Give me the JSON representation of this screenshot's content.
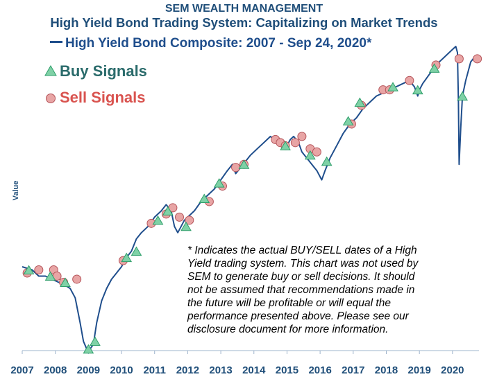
{
  "header": {
    "company": "SEM WEALTH MANAGEMENT",
    "title": "High Yield Bond Trading System: Capitalizing on Market Trends"
  },
  "legend": {
    "series_label": "High Yield Bond Composite: 2007 - Sep 24, 2020*",
    "buy_label": "Buy Signals",
    "sell_label": "Sell Signals"
  },
  "colors": {
    "line": "#1f4e8c",
    "buy": "#2e9e6a",
    "buy_fill": "#7fd1a6",
    "sell": "#b5545a",
    "sell_fill": "#e8a5a5",
    "header": "#1f4e79",
    "buy_text": "#2a6b6b",
    "sell_text": "#d9534f"
  },
  "disclaimer": "* Indicates the actual BUY/SELL dates of a High\nYield trading system.  This chart was not used by\nSEM to generate buy or sell decisions.  It should\nnot be assumed that recommendations made in\nthe future will be profitable or will equal the\nperformance presented above.  Please see our\ndisclosure document for more information.",
  "chart_data": {
    "type": "line",
    "title": "High Yield Bond Composite: 2007 - Sep 24, 2020*",
    "xlabel": "",
    "ylabel": "Value",
    "xlim": [
      2007.0,
      2020.8
    ],
    "ylim": [
      0,
      100
    ],
    "x_ticks": [
      2007,
      2008,
      2009,
      2010,
      2011,
      2012,
      2013,
      2014,
      2015,
      2016,
      2017,
      2018,
      2019,
      2020
    ],
    "y_tick_labels": "none",
    "series": [
      {
        "name": "High Yield Bond Composite",
        "x": [
          2007.0,
          2007.3,
          2007.5,
          2007.7,
          2007.9,
          2008.1,
          2008.3,
          2008.45,
          2008.6,
          2008.75,
          2008.85,
          2008.95,
          2009.05,
          2009.15,
          2009.25,
          2009.4,
          2009.55,
          2009.7,
          2009.85,
          2010.0,
          2010.15,
          2010.3,
          2010.45,
          2010.6,
          2010.8,
          2011.0,
          2011.2,
          2011.35,
          2011.5,
          2011.6,
          2011.7,
          2011.8,
          2011.9,
          2012.0,
          2012.2,
          2012.4,
          2012.6,
          2012.8,
          2013.0,
          2013.2,
          2013.35,
          2013.45,
          2013.6,
          2013.75,
          2013.9,
          2014.1,
          2014.3,
          2014.5,
          2014.6,
          2014.75,
          2014.9,
          2015.0,
          2015.1,
          2015.2,
          2015.35,
          2015.45,
          2015.6,
          2015.75,
          2015.9,
          2016.0,
          2016.05,
          2016.15,
          2016.3,
          2016.5,
          2016.7,
          2016.9,
          2017.1,
          2017.3,
          2017.5,
          2017.7,
          2017.9,
          2018.1,
          2018.3,
          2018.5,
          2018.7,
          2018.85,
          2018.95,
          2019.0,
          2019.1,
          2019.3,
          2019.5,
          2019.7,
          2019.9,
          2020.0,
          2020.1,
          2020.15,
          2020.18,
          2020.2,
          2020.25,
          2020.3,
          2020.4,
          2020.55,
          2020.7,
          2020.73
        ],
        "values": [
          27,
          26,
          24,
          24,
          23,
          22,
          21,
          20,
          17,
          9,
          3,
          0.5,
          0.5,
          2,
          9,
          16,
          20,
          23,
          25,
          27,
          30,
          32,
          36,
          38,
          40,
          43,
          45,
          47,
          45,
          40,
          38,
          40,
          42,
          43,
          45,
          48,
          50,
          52,
          55,
          58,
          60,
          57,
          59,
          61,
          63,
          65,
          67,
          69,
          68,
          67,
          65,
          66,
          68,
          69,
          67,
          64,
          62,
          60,
          58,
          56,
          55,
          58,
          62,
          66,
          70,
          73,
          75,
          78,
          80,
          82,
          83,
          84,
          85,
          86,
          87,
          85,
          82,
          84,
          86,
          89,
          92,
          94,
          96,
          97,
          98,
          96,
          80,
          60,
          72,
          82,
          87,
          93,
          95,
          94
        ]
      }
    ],
    "buy_signals": [
      {
        "x": 2007.2,
        "y": 26
      },
      {
        "x": 2007.85,
        "y": 24
      },
      {
        "x": 2008.3,
        "y": 22
      },
      {
        "x": 2009.0,
        "y": 0.5
      },
      {
        "x": 2009.2,
        "y": 3
      },
      {
        "x": 2010.15,
        "y": 30
      },
      {
        "x": 2010.45,
        "y": 32
      },
      {
        "x": 2011.1,
        "y": 42
      },
      {
        "x": 2011.4,
        "y": 45
      },
      {
        "x": 2011.95,
        "y": 40
      },
      {
        "x": 2012.5,
        "y": 49
      },
      {
        "x": 2012.95,
        "y": 54
      },
      {
        "x": 2013.7,
        "y": 60
      },
      {
        "x": 2014.95,
        "y": 66
      },
      {
        "x": 2015.7,
        "y": 63
      },
      {
        "x": 2016.2,
        "y": 61
      },
      {
        "x": 2016.85,
        "y": 74
      },
      {
        "x": 2017.2,
        "y": 80
      },
      {
        "x": 2018.2,
        "y": 85
      },
      {
        "x": 2018.95,
        "y": 84
      },
      {
        "x": 2019.45,
        "y": 91
      },
      {
        "x": 2020.3,
        "y": 82
      }
    ],
    "sell_signals": [
      {
        "x": 2007.15,
        "y": 25
      },
      {
        "x": 2007.5,
        "y": 26
      },
      {
        "x": 2007.95,
        "y": 26
      },
      {
        "x": 2008.05,
        "y": 24
      },
      {
        "x": 2008.25,
        "y": 22
      },
      {
        "x": 2008.65,
        "y": 23
      },
      {
        "x": 2010.05,
        "y": 29
      },
      {
        "x": 2010.9,
        "y": 41
      },
      {
        "x": 2011.35,
        "y": 44
      },
      {
        "x": 2011.55,
        "y": 46
      },
      {
        "x": 2011.75,
        "y": 43
      },
      {
        "x": 2012.05,
        "y": 42
      },
      {
        "x": 2012.65,
        "y": 48
      },
      {
        "x": 2013.05,
        "y": 53
      },
      {
        "x": 2013.45,
        "y": 59
      },
      {
        "x": 2013.7,
        "y": 60
      },
      {
        "x": 2014.65,
        "y": 68
      },
      {
        "x": 2014.8,
        "y": 67
      },
      {
        "x": 2014.95,
        "y": 66
      },
      {
        "x": 2015.25,
        "y": 67
      },
      {
        "x": 2015.45,
        "y": 69
      },
      {
        "x": 2015.7,
        "y": 65
      },
      {
        "x": 2015.9,
        "y": 64
      },
      {
        "x": 2016.95,
        "y": 73
      },
      {
        "x": 2017.25,
        "y": 79
      },
      {
        "x": 2017.9,
        "y": 84
      },
      {
        "x": 2018.1,
        "y": 84
      },
      {
        "x": 2018.7,
        "y": 87
      },
      {
        "x": 2019.5,
        "y": 92
      },
      {
        "x": 2020.2,
        "y": 94
      },
      {
        "x": 2020.75,
        "y": 94
      }
    ]
  }
}
